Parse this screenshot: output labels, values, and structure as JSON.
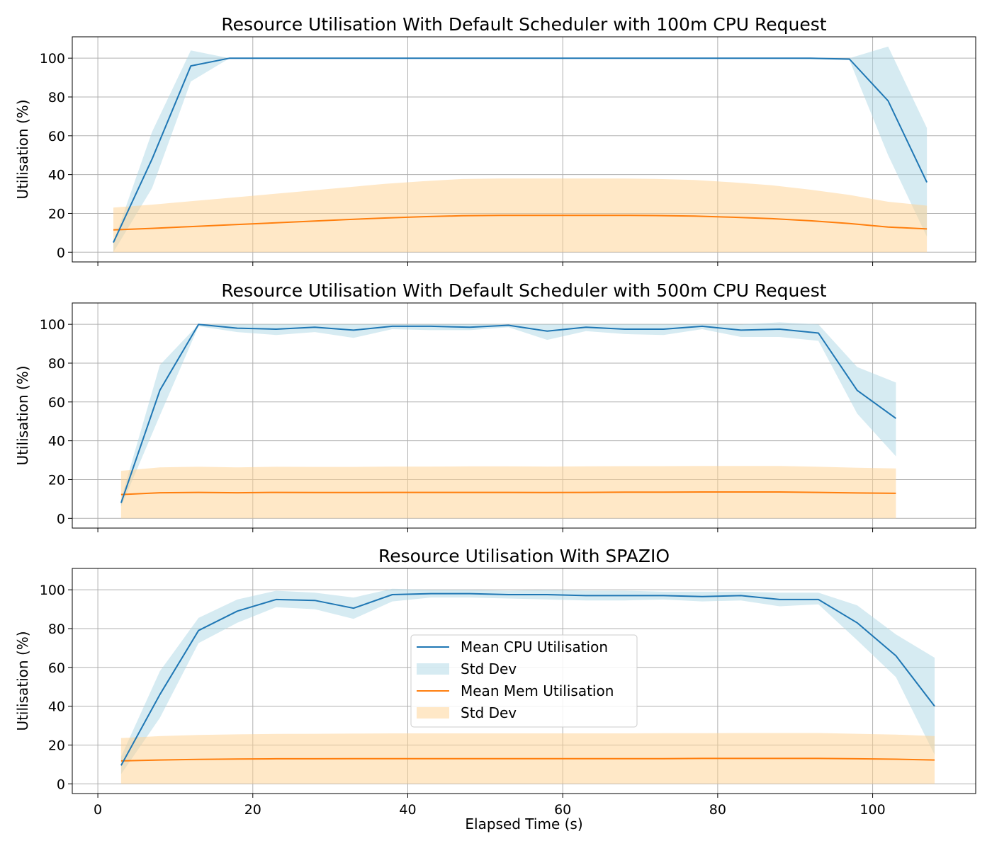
{
  "colors": {
    "cpu_line": "#1f77b4",
    "cpu_band": "#add8e6",
    "mem_line": "#ff7f0e",
    "mem_band": "#ffd28f",
    "grid": "#b0b0b0"
  },
  "legend": {
    "location": "center (bottom panel)",
    "items": [
      {
        "label": "Mean CPU Utilisation",
        "kind": "line",
        "color_key": "cpu_line"
      },
      {
        "label": "Std Dev",
        "kind": "band",
        "color_key": "cpu_band"
      },
      {
        "label": "Mean Mem Utilisation",
        "kind": "line",
        "color_key": "mem_line"
      },
      {
        "label": "Std Dev",
        "kind": "band",
        "color_key": "mem_band"
      }
    ]
  },
  "chart_data": [
    {
      "type": "line",
      "title": "Resource Utilisation With Default Scheduler with 100m CPU Request",
      "xlabel": "",
      "ylabel": "Utilisation (%)",
      "xlim": [
        -3.3,
        113.3
      ],
      "ylim": [
        -5,
        111
      ],
      "xticks": [
        0,
        20,
        40,
        60,
        80,
        100
      ],
      "xtick_labels": [],
      "yticks": [
        0,
        20,
        40,
        60,
        80,
        100
      ],
      "grid": true,
      "series": [
        {
          "name": "Mean CPU Utilisation",
          "x": [
            2,
            7,
            12,
            17,
            22,
            27,
            32,
            37,
            42,
            47,
            52,
            57,
            62,
            67,
            72,
            77,
            82,
            87,
            92,
            97,
            102,
            107
          ],
          "y": [
            5,
            48,
            96,
            100,
            100,
            100,
            100,
            100,
            100,
            100,
            100,
            100,
            100,
            100,
            100,
            100,
            100,
            100,
            100,
            99.5,
            78,
            36
          ],
          "std_upper": [
            5,
            62,
            104,
            100,
            100,
            100,
            100,
            100,
            100,
            100,
            100,
            100,
            100,
            100,
            100,
            100,
            100,
            100,
            100,
            100,
            106,
            64
          ],
          "std_lower": [
            0,
            33,
            88,
            100,
            100,
            100,
            100,
            100,
            100,
            100,
            100,
            100,
            100,
            100,
            100,
            100,
            100,
            100,
            99.5,
            99,
            50,
            8
          ]
        },
        {
          "name": "Mean Mem Utilisation",
          "x": [
            2,
            7,
            12,
            17,
            22,
            27,
            32,
            37,
            42,
            47,
            52,
            57,
            62,
            67,
            72,
            77,
            82,
            87,
            92,
            97,
            102,
            107
          ],
          "y": [
            11.5,
            12.3,
            13.2,
            14.1,
            15,
            15.9,
            16.8,
            17.6,
            18.3,
            18.8,
            19,
            19,
            19,
            19,
            18.9,
            18.6,
            18,
            17.3,
            16.2,
            14.8,
            13,
            12
          ],
          "std_upper": [
            23,
            24.5,
            26.3,
            28,
            29.8,
            31.6,
            33.4,
            35.2,
            36.6,
            37.7,
            38,
            38,
            38,
            38,
            37.8,
            37.2,
            36,
            34.5,
            32.2,
            29.5,
            26,
            24
          ],
          "std_lower": [
            0,
            0,
            0,
            0,
            0,
            0,
            0,
            0,
            0,
            0,
            0,
            0,
            0,
            0,
            0,
            0,
            0,
            0,
            0,
            0,
            0,
            0
          ]
        }
      ]
    },
    {
      "type": "line",
      "title": "Resource Utilisation With Default Scheduler with 500m CPU Request",
      "xlabel": "",
      "ylabel": "Utilisation (%)",
      "xlim": [
        -3.3,
        113.3
      ],
      "ylim": [
        -5,
        111
      ],
      "xticks": [
        0,
        20,
        40,
        60,
        80,
        100
      ],
      "xtick_labels": [],
      "yticks": [
        0,
        20,
        40,
        60,
        80,
        100
      ],
      "grid": true,
      "series": [
        {
          "name": "Mean CPU Utilisation",
          "x": [
            3,
            8,
            13,
            18,
            23,
            28,
            33,
            38,
            43,
            48,
            53,
            58,
            63,
            68,
            73,
            78,
            83,
            88,
            93,
            98,
            103
          ],
          "y": [
            8,
            66,
            100,
            98,
            97.5,
            98.5,
            97,
            99,
            99,
            98.5,
            99.5,
            96.5,
            98.5,
            97.5,
            97.5,
            99,
            97,
            97.5,
            95.5,
            66,
            51.5
          ],
          "std_upper": [
            10,
            79,
            100,
            100,
            100,
            100,
            100,
            100,
            100,
            100,
            100,
            100,
            100,
            100,
            100,
            100,
            100,
            101,
            100,
            78,
            70
          ],
          "std_lower": [
            6,
            53,
            99,
            96,
            94.5,
            96,
            93,
            97.5,
            97,
            97,
            98.5,
            92,
            96.5,
            95,
            94.5,
            97.5,
            93.5,
            93.5,
            91.5,
            54,
            32
          ]
        },
        {
          "name": "Mean Mem Utilisation",
          "x": [
            3,
            8,
            13,
            18,
            23,
            28,
            33,
            38,
            43,
            48,
            53,
            58,
            63,
            68,
            73,
            78,
            83,
            88,
            93,
            98,
            103
          ],
          "y": [
            12.3,
            13.2,
            13.4,
            13.2,
            13.4,
            13.3,
            13.3,
            13.4,
            13.4,
            13.4,
            13.4,
            13.3,
            13.4,
            13.5,
            13.5,
            13.6,
            13.6,
            13.6,
            13.4,
            13.1,
            12.9
          ],
          "std_upper": [
            24.5,
            26.3,
            26.6,
            26.3,
            26.6,
            26.5,
            26.5,
            26.7,
            26.7,
            26.8,
            26.8,
            26.7,
            26.8,
            26.9,
            26.9,
            27,
            27,
            27,
            26.6,
            26.1,
            25.7
          ],
          "std_lower": [
            0,
            0,
            0,
            0,
            0,
            0,
            0,
            0,
            0,
            0,
            0,
            0,
            0,
            0,
            0,
            0,
            0,
            0,
            0,
            0,
            0
          ]
        }
      ]
    },
    {
      "type": "line",
      "title": "Resource Utilisation With SPAZIO",
      "xlabel": "Elapsed Time (s)",
      "ylabel": "Utilisation (%)",
      "xlim": [
        -3.3,
        113.3
      ],
      "ylim": [
        -5,
        111
      ],
      "xticks": [
        0,
        20,
        40,
        60,
        80,
        100
      ],
      "xtick_labels": [
        "0",
        "20",
        "40",
        "60",
        "80",
        "100"
      ],
      "yticks": [
        0,
        20,
        40,
        60,
        80,
        100
      ],
      "grid": true,
      "series": [
        {
          "name": "Mean CPU Utilisation",
          "x": [
            3,
            8,
            13,
            18,
            23,
            28,
            33,
            38,
            43,
            48,
            53,
            58,
            63,
            68,
            73,
            78,
            83,
            88,
            93,
            98,
            103,
            108
          ],
          "y": [
            9.5,
            46,
            79,
            89,
            95,
            94.5,
            90.5,
            97.5,
            98,
            98,
            97.5,
            97.5,
            97,
            97,
            97,
            96.5,
            97,
            95,
            95,
            83,
            66,
            40
          ],
          "std_upper": [
            14,
            58,
            85.5,
            95,
            99.5,
            98.5,
            96,
            100.5,
            100,
            100,
            99.5,
            100,
            99.5,
            99.5,
            99,
            99,
            99,
            98.5,
            98.5,
            92,
            77,
            65
          ],
          "std_lower": [
            5,
            34,
            72.5,
            83,
            91,
            90,
            85,
            94,
            96,
            96,
            95.5,
            95,
            94.5,
            94.5,
            95,
            94,
            94.5,
            91.5,
            92.5,
            74,
            55,
            15
          ]
        },
        {
          "name": "Mean Mem Utilisation",
          "x": [
            3,
            8,
            13,
            18,
            23,
            28,
            33,
            38,
            43,
            48,
            53,
            58,
            63,
            68,
            73,
            78,
            83,
            88,
            93,
            98,
            103,
            108
          ],
          "y": [
            11.8,
            12.3,
            12.6,
            12.8,
            12.9,
            12.9,
            13,
            13,
            13,
            13,
            13,
            13,
            13,
            13,
            13,
            13.1,
            13.1,
            13.1,
            13.1,
            12.9,
            12.7,
            12.3
          ],
          "std_upper": [
            23.6,
            24.6,
            25.2,
            25.5,
            25.7,
            25.8,
            25.9,
            26,
            26,
            26,
            26,
            26,
            26,
            26,
            26.1,
            26.1,
            26.2,
            26.2,
            26.2,
            25.8,
            25.4,
            24.6
          ],
          "std_lower": [
            0,
            0,
            0,
            0,
            0,
            0,
            0,
            0,
            0,
            0,
            0,
            0,
            0,
            0,
            0,
            0,
            0,
            0,
            0,
            0,
            0,
            0
          ]
        }
      ]
    }
  ]
}
